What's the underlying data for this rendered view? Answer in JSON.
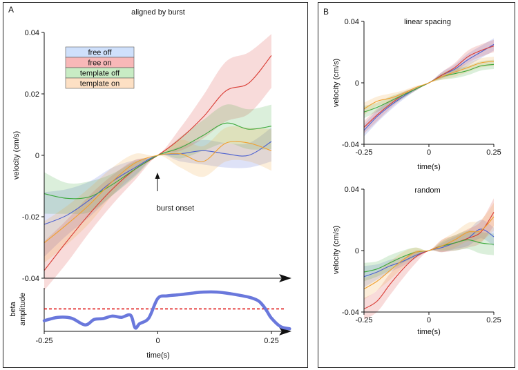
{
  "panels": {
    "a_label": "A",
    "b_label": "B"
  },
  "colors": {
    "free_off": "#4a5fd0",
    "free_on": "#d93a32",
    "template_off": "#3aa83a",
    "template_on": "#f0a030",
    "beta": "#6a78dc",
    "threshold": "#dd0000"
  },
  "legend": {
    "items": [
      {
        "key": "free_off",
        "label": "free off",
        "fill": "#cfe0fb"
      },
      {
        "key": "free_on",
        "label": "free on",
        "fill": "#f8b8b8"
      },
      {
        "key": "template_off",
        "label": "template off",
        "fill": "#c8ecc4"
      },
      {
        "key": "template_on",
        "label": "template on",
        "fill": "#fde0c4"
      }
    ]
  },
  "chart_data": [
    {
      "id": "main",
      "type": "line",
      "title": "aligned by burst",
      "xlabel": "time(s)",
      "ylabel": "velocity (cm/s)",
      "xlim": [
        -0.25,
        0.29
      ],
      "ylim": [
        -0.04,
        0.04
      ],
      "yticks": [
        0.04,
        0.02,
        0,
        -0.02,
        -0.04
      ],
      "ytick_labels": [
        "0.04",
        "0.02",
        "0",
        "-0.02",
        "-0.04"
      ],
      "xticks": [
        -0.25,
        0,
        0.25
      ],
      "xtick_labels": [
        "-0.25",
        "0",
        "0.25"
      ],
      "annotation": "burst onset",
      "series": [
        {
          "name": "free off",
          "key": "free_off",
          "x": [
            -0.25,
            -0.2,
            -0.15,
            -0.1,
            -0.05,
            0,
            0.05,
            0.1,
            0.15,
            0.2,
            0.25
          ],
          "y": [
            -0.0225,
            -0.0195,
            -0.0145,
            -0.0085,
            -0.004,
            0,
            0.0005,
            0.0015,
            0.0005,
            0,
            0.0045
          ],
          "lo": [
            -0.033,
            -0.026,
            -0.02,
            -0.013,
            -0.0065,
            0,
            -0.002,
            -0.003,
            -0.004,
            -0.004,
            -0.002
          ],
          "hi": [
            -0.012,
            -0.011,
            -0.0085,
            -0.004,
            -0.0015,
            0,
            0.003,
            0.005,
            0.004,
            0.004,
            0.009
          ]
        },
        {
          "name": "free on",
          "key": "free_on",
          "x": [
            -0.25,
            -0.2,
            -0.15,
            -0.1,
            -0.05,
            0,
            0.05,
            0.1,
            0.15,
            0.2,
            0.25
          ],
          "y": [
            -0.0375,
            -0.028,
            -0.019,
            -0.011,
            -0.0045,
            0,
            0.0055,
            0.0125,
            0.021,
            0.0235,
            0.0325
          ],
          "lo": [
            -0.044,
            -0.035,
            -0.025,
            -0.016,
            -0.008,
            0,
            0.0015,
            0.0055,
            0.011,
            0.0135,
            0.022
          ],
          "hi": [
            -0.028,
            -0.021,
            -0.013,
            -0.0065,
            -0.0015,
            0,
            0.009,
            0.0195,
            0.0305,
            0.0335,
            0.0395
          ]
        },
        {
          "name": "template off",
          "key": "template_off",
          "x": [
            -0.25,
            -0.2,
            -0.15,
            -0.1,
            -0.05,
            0,
            0.05,
            0.1,
            0.15,
            0.2,
            0.25
          ],
          "y": [
            -0.0125,
            -0.014,
            -0.0135,
            -0.0095,
            -0.0045,
            0,
            0.0025,
            0.0065,
            0.0105,
            0.0085,
            0.0095
          ],
          "lo": [
            -0.019,
            -0.019,
            -0.0185,
            -0.013,
            -0.007,
            0,
            -0.001,
            0.0015,
            0.004,
            0.002,
            0.002
          ],
          "hi": [
            -0.0055,
            -0.009,
            -0.0085,
            -0.006,
            -0.002,
            0,
            0.006,
            0.0115,
            0.0165,
            0.015,
            0.0165
          ]
        },
        {
          "name": "template on",
          "key": "template_on",
          "x": [
            -0.25,
            -0.2,
            -0.15,
            -0.1,
            -0.05,
            0,
            0.05,
            0.1,
            0.15,
            0.2,
            0.25
          ],
          "y": [
            -0.0285,
            -0.0225,
            -0.016,
            -0.0085,
            -0.0025,
            0,
            0.0005,
            -0.002,
            0.004,
            0.004,
            0.0015
          ],
          "lo": [
            -0.035,
            -0.029,
            -0.022,
            -0.013,
            -0.005,
            0,
            -0.004,
            -0.007,
            -0.002,
            -0.002,
            -0.005
          ],
          "hi": [
            -0.0215,
            -0.0165,
            -0.0105,
            -0.004,
            0.0005,
            0,
            0.005,
            0.003,
            0.009,
            0.009,
            0.0085
          ]
        }
      ]
    },
    {
      "id": "beta",
      "type": "line",
      "ylabel": "beta amplitude",
      "xlabel": "time(s)",
      "xlim": [
        -0.25,
        0.29
      ],
      "ylim": [
        0,
        1
      ],
      "threshold": 0.5,
      "series": [
        {
          "name": "beta amplitude",
          "key": "beta",
          "x": [
            -0.25,
            -0.22,
            -0.19,
            -0.16,
            -0.14,
            -0.12,
            -0.1,
            -0.08,
            -0.06,
            -0.05,
            -0.04,
            -0.02,
            0,
            0.02,
            0.05,
            0.08,
            0.1,
            0.13,
            0.16,
            0.2,
            0.22,
            0.23,
            0.24,
            0.25,
            0.27,
            0.29
          ],
          "y": [
            0.22,
            0.3,
            0.28,
            0.12,
            0.25,
            0.27,
            0.33,
            0.3,
            0.35,
            0.05,
            0.15,
            0.28,
            0.75,
            0.81,
            0.84,
            0.88,
            0.9,
            0.9,
            0.86,
            0.78,
            0.7,
            0.6,
            0.45,
            0.28,
            0.08,
            0.03
          ]
        }
      ]
    },
    {
      "id": "linear",
      "type": "line",
      "title": "linear spacing",
      "xlabel": "time(s)",
      "ylabel": "velocity (cm/s)",
      "xlim": [
        -0.25,
        0.25
      ],
      "ylim": [
        -0.04,
        0.04
      ],
      "yticks": [
        0.04,
        0,
        -0.04
      ],
      "ytick_labels": [
        "0.04",
        "0",
        "-0.04"
      ],
      "xticks": [
        -0.25,
        0,
        0.25
      ],
      "xtick_labels": [
        "-0.25",
        "0",
        "0.25"
      ],
      "series": [
        {
          "name": "free off",
          "key": "free_off",
          "x": [
            -0.25,
            -0.2,
            -0.15,
            -0.1,
            -0.05,
            0,
            0.05,
            0.1,
            0.15,
            0.2,
            0.25
          ],
          "y": [
            -0.031,
            -0.022,
            -0.015,
            -0.009,
            -0.004,
            0,
            0.005,
            0.009,
            0.015,
            0.02,
            0.025
          ],
          "lo": [
            -0.035,
            -0.026,
            -0.018,
            -0.011,
            -0.005,
            0,
            0.003,
            0.006,
            0.011,
            0.016,
            0.021
          ],
          "hi": [
            -0.027,
            -0.018,
            -0.012,
            -0.007,
            -0.003,
            0,
            0.007,
            0.012,
            0.019,
            0.024,
            0.029
          ]
        },
        {
          "name": "free on",
          "key": "free_on",
          "x": [
            -0.25,
            -0.2,
            -0.15,
            -0.1,
            -0.05,
            0,
            0.05,
            0.1,
            0.15,
            0.2,
            0.25
          ],
          "y": [
            -0.029,
            -0.021,
            -0.014,
            -0.008,
            -0.004,
            0,
            0.005,
            0.01,
            0.017,
            0.021,
            0.024
          ],
          "lo": [
            -0.033,
            -0.025,
            -0.017,
            -0.01,
            -0.005,
            0,
            0.003,
            0.007,
            0.013,
            0.017,
            0.02
          ],
          "hi": [
            -0.025,
            -0.017,
            -0.011,
            -0.006,
            -0.003,
            0,
            0.007,
            0.013,
            0.021,
            0.025,
            0.028
          ]
        },
        {
          "name": "template off",
          "key": "template_off",
          "x": [
            -0.25,
            -0.2,
            -0.15,
            -0.1,
            -0.05,
            0,
            0.05,
            0.1,
            0.15,
            0.2,
            0.25
          ],
          "y": [
            -0.019,
            -0.016,
            -0.012,
            -0.008,
            -0.004,
            0,
            0.004,
            0.006,
            0.008,
            0.011,
            0.012
          ],
          "lo": [
            -0.023,
            -0.019,
            -0.015,
            -0.01,
            -0.005,
            0,
            0.002,
            0.003,
            0.005,
            0.008,
            0.009
          ],
          "hi": [
            -0.015,
            -0.013,
            -0.009,
            -0.006,
            -0.003,
            0,
            0.006,
            0.009,
            0.011,
            0.014,
            0.015
          ]
        },
        {
          "name": "template on",
          "key": "template_on",
          "x": [
            -0.25,
            -0.2,
            -0.15,
            -0.1,
            -0.05,
            0,
            0.05,
            0.1,
            0.15,
            0.2,
            0.25
          ],
          "y": [
            -0.017,
            -0.012,
            -0.01,
            -0.007,
            -0.003,
            0,
            0.004,
            0.007,
            0.01,
            0.013,
            0.014
          ],
          "lo": [
            -0.021,
            -0.015,
            -0.013,
            -0.009,
            -0.004,
            0,
            0.002,
            0.004,
            0.007,
            0.01,
            0.011
          ],
          "hi": [
            -0.013,
            -0.009,
            -0.007,
            -0.005,
            -0.002,
            0,
            0.006,
            0.01,
            0.013,
            0.016,
            0.017
          ]
        }
      ]
    },
    {
      "id": "random",
      "type": "line",
      "title": "random",
      "xlabel": "time(s)",
      "ylabel": "velocity (cm/s)",
      "xlim": [
        -0.25,
        0.25
      ],
      "ylim": [
        -0.04,
        0.04
      ],
      "yticks": [
        0.04,
        0,
        -0.04
      ],
      "ytick_labels": [
        "0.04",
        "0",
        "-0.04"
      ],
      "xticks": [
        -0.25,
        0,
        0.25
      ],
      "xtick_labels": [
        "-0.25",
        "0",
        "0.25"
      ],
      "series": [
        {
          "name": "free off",
          "key": "free_off",
          "x": [
            -0.25,
            -0.2,
            -0.15,
            -0.1,
            -0.05,
            0,
            0.05,
            0.1,
            0.15,
            0.2,
            0.25
          ],
          "y": [
            -0.017,
            -0.014,
            -0.01,
            -0.007,
            -0.003,
            0,
            0.002,
            0.005,
            0.008,
            0.014,
            0.009
          ],
          "lo": [
            -0.024,
            -0.019,
            -0.014,
            -0.01,
            -0.005,
            0,
            -0.001,
            0.001,
            0.003,
            0.008,
            0.003
          ],
          "hi": [
            -0.01,
            -0.009,
            -0.006,
            -0.004,
            -0.001,
            0,
            0.005,
            0.009,
            0.013,
            0.02,
            0.015
          ]
        },
        {
          "name": "free on",
          "key": "free_on",
          "x": [
            -0.25,
            -0.2,
            -0.15,
            -0.1,
            -0.05,
            0,
            0.05,
            0.1,
            0.15,
            0.2,
            0.25
          ],
          "y": [
            -0.038,
            -0.033,
            -0.022,
            -0.012,
            -0.004,
            0,
            0.003,
            0.005,
            0.008,
            0.012,
            0.025
          ],
          "lo": [
            -0.045,
            -0.04,
            -0.029,
            -0.018,
            -0.008,
            0,
            -0.001,
            0.0,
            0.002,
            0.005,
            0.016
          ],
          "hi": [
            -0.031,
            -0.026,
            -0.015,
            -0.006,
            0.0,
            0,
            0.007,
            0.01,
            0.014,
            0.019,
            0.034
          ]
        },
        {
          "name": "template off",
          "key": "template_off",
          "x": [
            -0.25,
            -0.2,
            -0.15,
            -0.1,
            -0.05,
            0,
            0.05,
            0.1,
            0.15,
            0.2,
            0.25
          ],
          "y": [
            -0.014,
            -0.012,
            -0.008,
            -0.004,
            -0.001,
            0,
            0.003,
            0.005,
            0.007,
            0.005,
            0.004
          ],
          "lo": [
            -0.02,
            -0.017,
            -0.013,
            -0.008,
            -0.004,
            0,
            0.0,
            0.0,
            0.001,
            -0.002,
            -0.003
          ],
          "hi": [
            -0.008,
            -0.007,
            -0.003,
            0.0,
            0.002,
            0,
            0.006,
            0.01,
            0.013,
            0.012,
            0.011
          ]
        },
        {
          "name": "template on",
          "key": "template_on",
          "x": [
            -0.25,
            -0.2,
            -0.15,
            -0.1,
            -0.05,
            0,
            0.05,
            0.1,
            0.15,
            0.2,
            0.25
          ],
          "y": [
            -0.025,
            -0.02,
            -0.013,
            -0.006,
            -0.001,
            0,
            0.003,
            0.007,
            0.012,
            0.013,
            0.022
          ],
          "lo": [
            -0.032,
            -0.026,
            -0.019,
            -0.011,
            -0.004,
            0,
            -0.001,
            0.002,
            0.006,
            0.006,
            0.013
          ],
          "hi": [
            -0.018,
            -0.014,
            -0.007,
            -0.001,
            0.002,
            0,
            0.007,
            0.012,
            0.018,
            0.02,
            0.031
          ]
        }
      ]
    }
  ]
}
